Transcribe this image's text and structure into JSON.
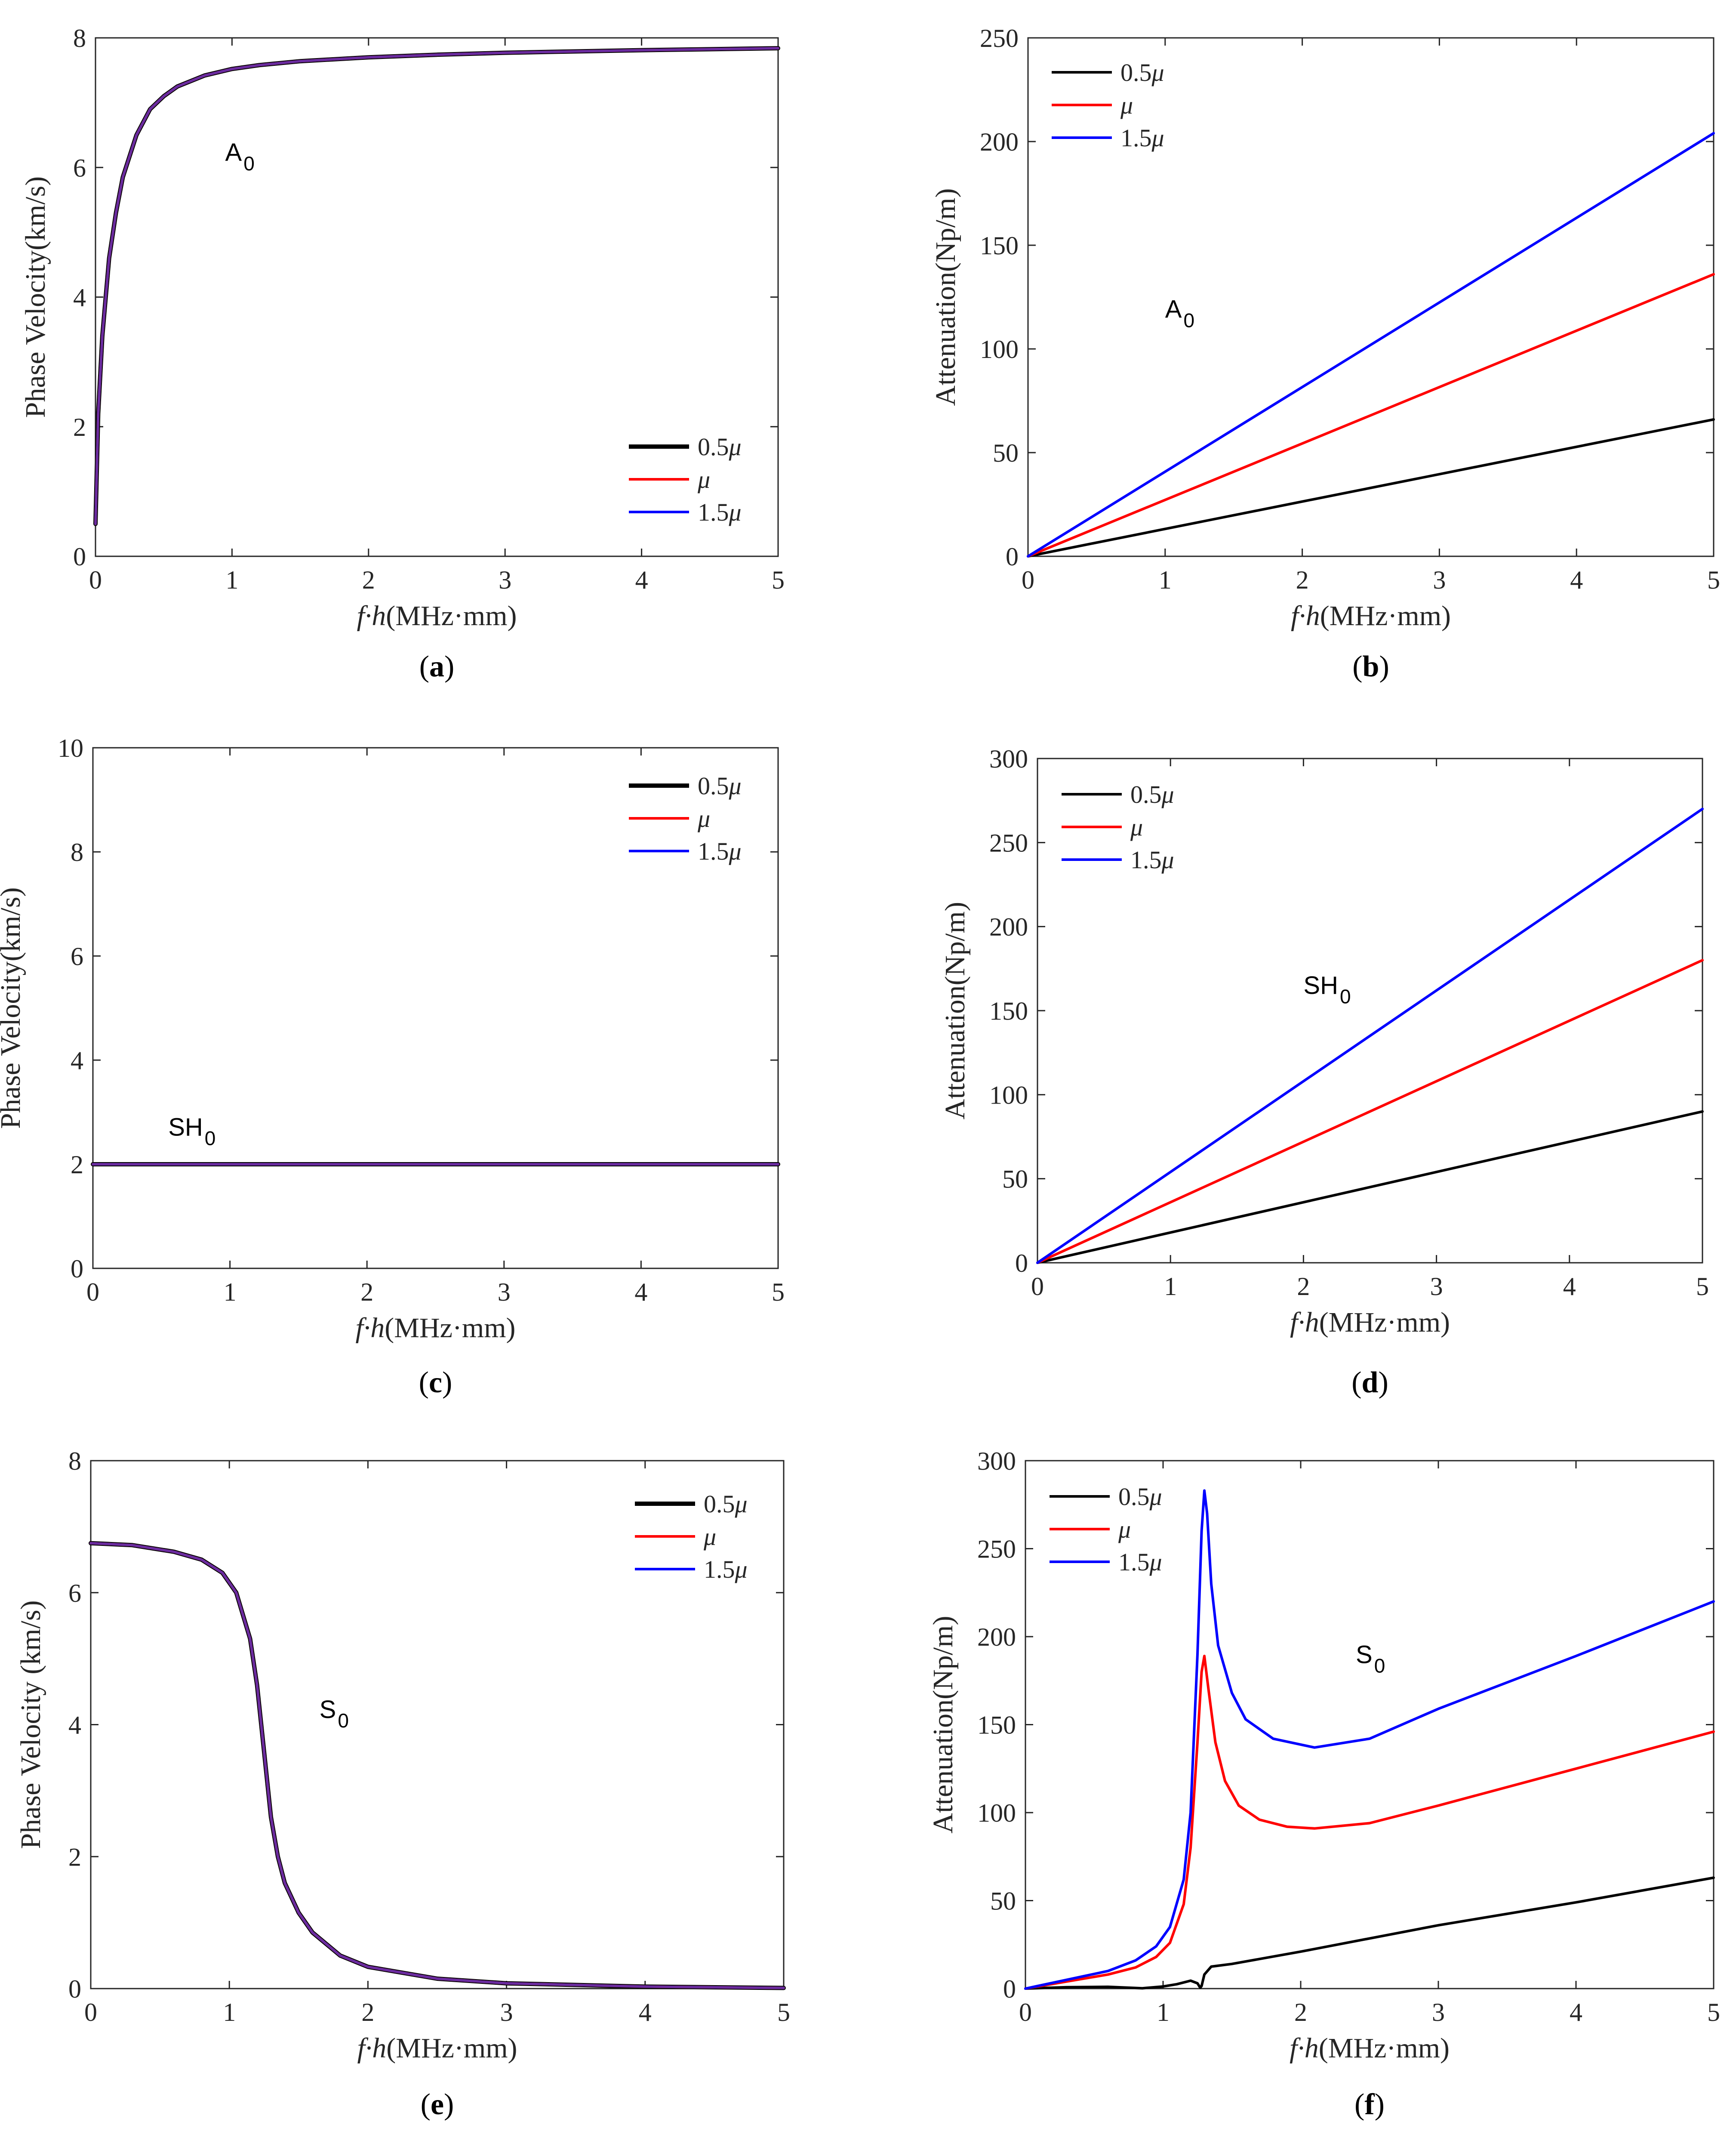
{
  "figure": {
    "x_tick_labels": [
      "0",
      "1",
      "2",
      "3",
      "4",
      "5"
    ],
    "series_labels": [
      "0.5μ",
      "μ",
      "1.5μ"
    ],
    "colors": {
      "s05": "#000000",
      "s10": "#ff0000",
      "s15": "#0000ff",
      "overlay": "#6a2ca0",
      "axis": "#262626"
    }
  },
  "chart_data": [
    {
      "id": "a",
      "type": "line",
      "caption": "(a)",
      "caption_letter": "a",
      "xlabel_var": "f·h",
      "xlabel_unit": "(MHz·mm)",
      "ylabel": "Phase Velocity(km/s)",
      "xlim": [
        0,
        5
      ],
      "ylim": [
        0,
        8
      ],
      "yticks": [
        "0",
        "2",
        "4",
        "6",
        "8"
      ],
      "annotation": {
        "main": "A",
        "sub": "0"
      },
      "legend_position": "bottom-right",
      "series": [
        {
          "name": "0.5μ",
          "x": [
            0,
            0.02,
            0.05,
            0.1,
            0.15,
            0.2,
            0.3,
            0.4,
            0.5,
            0.6,
            0.8,
            1.0,
            1.2,
            1.5,
            2.0,
            2.5,
            3.0,
            4.0,
            5.0
          ],
          "y": [
            0.5,
            2.2,
            3.4,
            4.6,
            5.3,
            5.85,
            6.5,
            6.9,
            7.1,
            7.25,
            7.42,
            7.52,
            7.58,
            7.64,
            7.7,
            7.74,
            7.77,
            7.81,
            7.84
          ]
        },
        {
          "name": "μ",
          "x": [
            0,
            0.02,
            0.05,
            0.1,
            0.15,
            0.2,
            0.3,
            0.4,
            0.5,
            0.6,
            0.8,
            1.0,
            1.2,
            1.5,
            2.0,
            2.5,
            3.0,
            4.0,
            5.0
          ],
          "y": [
            0.5,
            2.2,
            3.4,
            4.6,
            5.3,
            5.85,
            6.5,
            6.9,
            7.1,
            7.25,
            7.42,
            7.52,
            7.58,
            7.64,
            7.7,
            7.74,
            7.77,
            7.81,
            7.84
          ]
        },
        {
          "name": "1.5μ",
          "x": [
            0,
            0.02,
            0.05,
            0.1,
            0.15,
            0.2,
            0.3,
            0.4,
            0.5,
            0.6,
            0.8,
            1.0,
            1.2,
            1.5,
            2.0,
            2.5,
            3.0,
            4.0,
            5.0
          ],
          "y": [
            0.5,
            2.2,
            3.4,
            4.6,
            5.3,
            5.85,
            6.5,
            6.9,
            7.1,
            7.25,
            7.42,
            7.52,
            7.58,
            7.64,
            7.7,
            7.74,
            7.77,
            7.81,
            7.84
          ]
        }
      ]
    },
    {
      "id": "b",
      "type": "line",
      "caption": "(b)",
      "caption_letter": "b",
      "xlabel_var": "f·h",
      "xlabel_unit": "(MHz·mm)",
      "ylabel": "Attenuation(Np/m)",
      "xlim": [
        0,
        5
      ],
      "ylim": [
        0,
        250
      ],
      "yticks": [
        "0",
        "50",
        "100",
        "150",
        "200",
        "250"
      ],
      "annotation": {
        "main": "A",
        "sub": "0"
      },
      "legend_position": "top-left",
      "series": [
        {
          "name": "0.5μ",
          "x": [
            0,
            5
          ],
          "y": [
            0,
            66
          ]
        },
        {
          "name": "μ",
          "x": [
            0,
            5
          ],
          "y": [
            0,
            136
          ]
        },
        {
          "name": "1.5μ",
          "x": [
            0,
            5
          ],
          "y": [
            0,
            204
          ]
        }
      ]
    },
    {
      "id": "c",
      "type": "line",
      "caption": "(c)",
      "caption_letter": "c",
      "xlabel_var": "f·h",
      "xlabel_unit": "(MHz·mm)",
      "ylabel": "Phase Velocity(km/s)",
      "xlim": [
        0,
        5
      ],
      "ylim": [
        0,
        10
      ],
      "yticks": [
        "0",
        "2",
        "4",
        "6",
        "8",
        "10"
      ],
      "annotation": {
        "main": "SH",
        "sub": "0"
      },
      "legend_position": "top-right",
      "series": [
        {
          "name": "0.5μ",
          "x": [
            0,
            5
          ],
          "y": [
            2.0,
            2.0
          ]
        },
        {
          "name": "μ",
          "x": [
            0,
            5
          ],
          "y": [
            2.0,
            2.0
          ]
        },
        {
          "name": "1.5μ",
          "x": [
            0,
            5
          ],
          "y": [
            2.0,
            2.0
          ]
        }
      ]
    },
    {
      "id": "d",
      "type": "line",
      "caption": "(d)",
      "caption_letter": "d",
      "xlabel_var": "f·h",
      "xlabel_unit": "(MHz·mm)",
      "ylabel": "Attenuation(Np/m)",
      "xlim": [
        0,
        5
      ],
      "ylim": [
        0,
        300
      ],
      "yticks": [
        "0",
        "50",
        "100",
        "150",
        "200",
        "250",
        "300"
      ],
      "annotation": {
        "main": "SH",
        "sub": "0"
      },
      "legend_position": "top-left",
      "series": [
        {
          "name": "0.5μ",
          "x": [
            0,
            5
          ],
          "y": [
            0,
            90
          ]
        },
        {
          "name": "μ",
          "x": [
            0,
            5
          ],
          "y": [
            0,
            180
          ]
        },
        {
          "name": "1.5μ",
          "x": [
            0,
            5
          ],
          "y": [
            0,
            270
          ]
        }
      ]
    },
    {
      "id": "e",
      "type": "line",
      "caption": "(e)",
      "caption_letter": "e",
      "xlabel_var": "f·h",
      "xlabel_unit": "(MHz·mm)",
      "ylabel": "Phase Velocity (km/s)",
      "xlim": [
        0,
        5
      ],
      "ylim": [
        0,
        8
      ],
      "yticks": [
        "0",
        "2",
        "4",
        "6",
        "8"
      ],
      "annotation": {
        "main": "S",
        "sub": "0"
      },
      "legend_position": "top-right",
      "series": [
        {
          "name": "0.5μ",
          "x": [
            0,
            0.3,
            0.6,
            0.8,
            0.95,
            1.05,
            1.15,
            1.2,
            1.25,
            1.3,
            1.35,
            1.4,
            1.5,
            1.6,
            1.8,
            2.0,
            2.5,
            3.0,
            4.0,
            5.0
          ],
          "y": [
            6.75,
            6.72,
            6.62,
            6.5,
            6.3,
            6.0,
            5.3,
            4.6,
            3.6,
            2.6,
            2.0,
            1.6,
            1.15,
            0.85,
            0.5,
            0.33,
            0.15,
            0.08,
            0.03,
            0.01
          ]
        },
        {
          "name": "μ",
          "x": [
            0,
            0.3,
            0.6,
            0.8,
            0.95,
            1.05,
            1.15,
            1.2,
            1.25,
            1.3,
            1.35,
            1.4,
            1.5,
            1.6,
            1.8,
            2.0,
            2.5,
            3.0,
            4.0,
            5.0
          ],
          "y": [
            6.75,
            6.72,
            6.62,
            6.5,
            6.3,
            6.0,
            5.3,
            4.6,
            3.6,
            2.6,
            2.0,
            1.6,
            1.15,
            0.85,
            0.5,
            0.33,
            0.15,
            0.08,
            0.03,
            0.01
          ]
        },
        {
          "name": "1.5μ",
          "x": [
            0,
            0.3,
            0.6,
            0.8,
            0.95,
            1.05,
            1.15,
            1.2,
            1.25,
            1.3,
            1.35,
            1.4,
            1.5,
            1.6,
            1.8,
            2.0,
            2.5,
            3.0,
            4.0,
            5.0
          ],
          "y": [
            6.75,
            6.72,
            6.62,
            6.5,
            6.3,
            6.0,
            5.3,
            4.6,
            3.6,
            2.6,
            2.0,
            1.6,
            1.15,
            0.85,
            0.5,
            0.33,
            0.15,
            0.08,
            0.03,
            0.01
          ]
        }
      ]
    },
    {
      "id": "f",
      "type": "line",
      "caption": "(f)",
      "caption_letter": "f",
      "xlabel_var": "f·h",
      "xlabel_unit": "(MHz·mm)",
      "ylabel": "Attenuation(Np/m)",
      "xlim": [
        0,
        5
      ],
      "ylim": [
        0,
        300
      ],
      "yticks": [
        "0",
        "50",
        "100",
        "150",
        "200",
        "250",
        "300"
      ],
      "annotation": {
        "main": "S",
        "sub": "0"
      },
      "legend_position": "top-left",
      "series": [
        {
          "name": "0.5μ",
          "x": [
            0,
            0.3,
            0.6,
            0.85,
            1.0,
            1.1,
            1.2,
            1.25,
            1.27,
            1.28,
            1.3,
            1.35,
            1.5,
            2.0,
            3.0,
            4.0,
            5.0
          ],
          "y": [
            0,
            0.8,
            1.0,
            0.2,
            1.2,
            2.5,
            4.5,
            3.0,
            0.5,
            1.5,
            8,
            12.5,
            14,
            21,
            36,
            49,
            63
          ]
        },
        {
          "name": "μ",
          "x": [
            0,
            0.3,
            0.6,
            0.8,
            0.95,
            1.05,
            1.15,
            1.2,
            1.25,
            1.28,
            1.3,
            1.33,
            1.38,
            1.45,
            1.55,
            1.7,
            1.9,
            2.1,
            2.5,
            3.0,
            4.0,
            5.0
          ],
          "y": [
            0,
            4,
            8,
            12,
            18,
            26,
            48,
            80,
            140,
            180,
            189,
            170,
            140,
            118,
            104,
            96,
            92,
            91,
            94,
            104,
            125,
            146
          ]
        },
        {
          "name": "1.5μ",
          "x": [
            0,
            0.3,
            0.6,
            0.8,
            0.95,
            1.05,
            1.15,
            1.2,
            1.25,
            1.28,
            1.3,
            1.32,
            1.35,
            1.4,
            1.5,
            1.6,
            1.8,
            2.1,
            2.5,
            3.0,
            4.0,
            5.0
          ],
          "y": [
            0,
            5,
            10,
            16,
            24,
            35,
            62,
            100,
            190,
            260,
            283,
            270,
            230,
            195,
            168,
            153,
            142,
            137,
            142,
            159,
            189,
            220
          ]
        }
      ]
    }
  ]
}
